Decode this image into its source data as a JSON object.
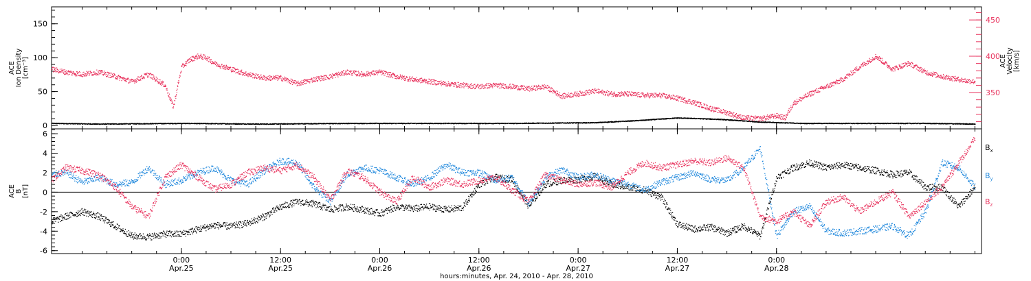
{
  "chart_data": [
    {
      "type": "scatter",
      "title": "",
      "xlabel": "hours:minutes, Apr. 24, 2010 - Apr. 28, 2010",
      "ylabel": "ACE Ion Density [cm-3]",
      "ylabel_lines": [
        "ACE",
        "Ion Density",
        "[cm⁻³]"
      ],
      "ylabel_right_lines": [
        "ACE",
        "Velocity",
        "[km/s]"
      ],
      "xlim_hours": [
        -15.7,
        96.8
      ],
      "ylim": [
        -5,
        175
      ],
      "ylim_right": [
        300,
        468
      ],
      "yticks": [
        0,
        50,
        100,
        150
      ],
      "yticks_right": [
        350,
        400,
        450
      ],
      "right_axis_color": "#e8315c",
      "series": [
        {
          "name": "Ion Density",
          "color": "#000000",
          "axis": "left",
          "x": [
            -15.7,
            -10,
            0,
            10,
            20,
            30,
            40,
            50,
            55,
            60,
            65,
            70,
            75,
            80,
            85,
            90,
            96
          ],
          "y": [
            3,
            2,
            3,
            2,
            3,
            3,
            3,
            4,
            7,
            11,
            9,
            5,
            3,
            3,
            3,
            3,
            2
          ]
        },
        {
          "name": "Velocity",
          "color": "#e8315c",
          "axis": "right",
          "x": [
            -15.7,
            -14,
            -12,
            -10,
            -8,
            -6,
            -4,
            -2,
            -1,
            0,
            1,
            2,
            3,
            4,
            6,
            8,
            10,
            12,
            14,
            16,
            18,
            20,
            22,
            24,
            26,
            28,
            30,
            32,
            34,
            36,
            38,
            40,
            42,
            44,
            46,
            48,
            50,
            52,
            54,
            56,
            58,
            60,
            62,
            64,
            66,
            68,
            70,
            72,
            73,
            74,
            76,
            78,
            80,
            82,
            84,
            86,
            88,
            90,
            92,
            94,
            95,
            96
          ],
          "y": [
            382,
            378,
            375,
            378,
            372,
            365,
            375,
            360,
            330,
            385,
            395,
            400,
            398,
            390,
            382,
            375,
            370,
            370,
            362,
            368,
            372,
            378,
            375,
            378,
            372,
            368,
            365,
            362,
            360,
            358,
            360,
            358,
            355,
            358,
            345,
            348,
            352,
            348,
            348,
            346,
            346,
            342,
            336,
            328,
            322,
            315,
            314,
            318,
            315,
            335,
            348,
            358,
            368,
            385,
            400,
            382,
            390,
            378,
            372,
            368,
            366,
            365
          ]
        }
      ]
    },
    {
      "type": "scatter",
      "title": "",
      "xlabel": "hours:minutes, Apr. 24, 2010 - Apr. 28, 2010",
      "ylabel": "ACE B [nT]",
      "ylabel_lines": [
        "ACE",
        "B",
        "[nT]"
      ],
      "xlim_hours": [
        -15.7,
        96.8
      ],
      "ylim": [
        -6.3,
        6.5
      ],
      "yticks": [
        -6,
        -4,
        -2,
        0,
        2,
        4,
        6
      ],
      "zero_line": true,
      "series": [
        {
          "name": "Bx",
          "label_main": "B",
          "label_sub": "x",
          "color": "#000000",
          "x": [
            -15.7,
            -14,
            -12,
            -10,
            -8,
            -6,
            -4,
            -2,
            0,
            2,
            4,
            6,
            8,
            10,
            12,
            14,
            16,
            18,
            20,
            22,
            24,
            26,
            28,
            30,
            32,
            34,
            36,
            38,
            40,
            42,
            44,
            46,
            48,
            50,
            52,
            54,
            56,
            58,
            60,
            62,
            64,
            66,
            68,
            70,
            72,
            74,
            76,
            78,
            80,
            82,
            84,
            86,
            88,
            90,
            92,
            94,
            96
          ],
          "y": [
            -3,
            -2.5,
            -2,
            -2.5,
            -3.5,
            -4.5,
            -4.6,
            -4.3,
            -4.3,
            -3.8,
            -3.4,
            -3.5,
            -3.2,
            -2.5,
            -1.5,
            -1,
            -1.2,
            -1.8,
            -1.5,
            -1.8,
            -2.2,
            -1.5,
            -1.7,
            -1.5,
            -1.8,
            -1.6,
            0.8,
            1.5,
            1.3,
            -1.5,
            0.8,
            1.2,
            1.3,
            1.6,
            0.8,
            0.5,
            0.2,
            -0.5,
            -3.3,
            -3.8,
            -3.6,
            -4.2,
            -3.5,
            -4.5,
            1.5,
            2.5,
            3,
            2.5,
            2.8,
            2.5,
            2.2,
            1.8,
            2,
            0.5,
            0.5,
            -1.5,
            0.5
          ]
        },
        {
          "name": "By",
          "label_main": "B",
          "label_sub": "y",
          "color": "#1e87dc",
          "x": [
            -15.7,
            -14,
            -12,
            -10,
            -8,
            -6,
            -4,
            -2,
            0,
            2,
            4,
            6,
            8,
            10,
            12,
            14,
            16,
            18,
            20,
            22,
            24,
            26,
            28,
            30,
            32,
            34,
            36,
            38,
            40,
            42,
            44,
            46,
            48,
            50,
            52,
            54,
            56,
            58,
            60,
            62,
            64,
            66,
            68,
            70,
            72,
            74,
            76,
            78,
            80,
            82,
            84,
            86,
            88,
            90,
            92,
            94,
            96
          ],
          "y": [
            1.8,
            2,
            1,
            1.5,
            0.8,
            1,
            2.5,
            0.8,
            1.2,
            2,
            2.5,
            1.2,
            0.8,
            2.2,
            3.2,
            3,
            0.5,
            -1,
            1.8,
            2.5,
            2.2,
            1.5,
            0.8,
            1.5,
            2.8,
            2,
            2,
            1.2,
            1.5,
            -1.2,
            1.5,
            2.3,
            1.5,
            1.8,
            1.2,
            0.8,
            0.2,
            1,
            1.5,
            2,
            1.3,
            1.2,
            2.5,
            4.5,
            -4.5,
            -2,
            -1.5,
            -4,
            -4.2,
            -4,
            -3.8,
            -3.5,
            -4.5,
            -2,
            3,
            2.5,
            0.5
          ]
        },
        {
          "name": "Bz",
          "label_main": "B",
          "label_sub": "z",
          "color": "#e8315c",
          "x": [
            -15.7,
            -14,
            -12,
            -10,
            -8,
            -6,
            -4,
            -2,
            0,
            2,
            4,
            6,
            8,
            10,
            12,
            14,
            16,
            18,
            20,
            22,
            24,
            26,
            28,
            30,
            32,
            34,
            36,
            38,
            40,
            42,
            44,
            46,
            48,
            50,
            52,
            54,
            56,
            58,
            60,
            62,
            64,
            66,
            68,
            70,
            72,
            74,
            76,
            78,
            80,
            82,
            84,
            86,
            88,
            90,
            92,
            94,
            96
          ],
          "y": [
            1.2,
            2.5,
            2.2,
            1.8,
            0.5,
            -1.5,
            -2.5,
            1.5,
            2.8,
            1.5,
            0.3,
            0.8,
            2,
            2.5,
            2.2,
            2.8,
            1.5,
            -0.8,
            2.2,
            1.5,
            0,
            -1,
            1.5,
            0.5,
            1.2,
            0.8,
            1.2,
            1.5,
            0.2,
            -1,
            1.8,
            1.2,
            0.8,
            1,
            0.5,
            2,
            3,
            2.5,
            2.8,
            3.2,
            3,
            3.5,
            2.5,
            -2.5,
            -3,
            -2,
            -3.5,
            -1,
            -0.5,
            -2,
            -1,
            0,
            -2.5,
            -1,
            0.5,
            3,
            5.5
          ]
        }
      ]
    }
  ],
  "x_axis": {
    "ticks": [
      {
        "hours": 0,
        "time": "0:00",
        "date": "Apr.25"
      },
      {
        "hours": 12,
        "time": "12:00",
        "date": "Apr.25"
      },
      {
        "hours": 24,
        "time": "0:00",
        "date": "Apr.26"
      },
      {
        "hours": 36,
        "time": "12:00",
        "date": "Apr.26"
      },
      {
        "hours": 48,
        "time": "0:00",
        "date": "Apr.27"
      },
      {
        "hours": 60,
        "time": "12:00",
        "date": "Apr.27"
      },
      {
        "hours": 72,
        "time": "0:00",
        "date": "Apr.28"
      }
    ]
  }
}
